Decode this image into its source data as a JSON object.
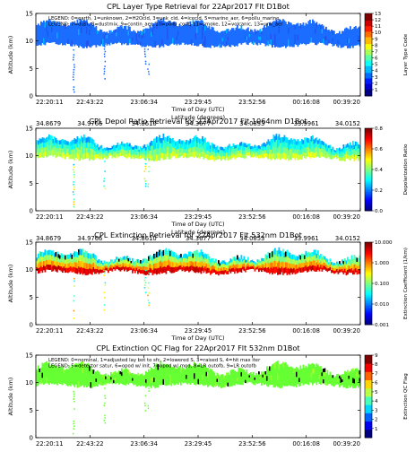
{
  "chart_data": [
    {
      "type": "heatmap",
      "title": "CPL Layer Type Retrieval for 22Apr2017 Flt D1Bot",
      "xlabel": "Time of Day (UTC)",
      "ylabel": "Altitude (km)",
      "xticks": [
        "22:20:11",
        "22:43:22",
        "23:06:34",
        "23:29:45",
        "23:52:56",
        "00:16:08",
        "00:39:20"
      ],
      "ylim": [
        0,
        15
      ],
      "yticks": [
        "0",
        "5",
        "10",
        "15"
      ],
      "colorbar": {
        "label": "Layer Type Code",
        "ticks": [
          "1",
          "2",
          "3",
          "4",
          "5",
          "6",
          "7",
          "8",
          "9",
          "10",
          "11",
          "12",
          "13"
        ],
        "scale": "linear",
        "range": [
          0,
          13
        ]
      },
      "legend": [
        "LEGEND: 0=earth, 1=unknown, 2=H2Ocld, 3=unk_cld, 4=icecld, 5=marine_aer, 6=pollu_marine",
        "LEGEND: 7=dust, 8=dustmix, 9=contin_aer, 10=pollu_cont, 11=smoke, 12=volcanic, 13=unk_aer"
      ],
      "latitude_label": "Latitude (degrees)",
      "latitude_ticks": [
        "34.8679",
        "34.9766",
        "34.8610",
        "34.3677",
        "34.0853",
        "33.9961",
        "34.0152"
      ]
    },
    {
      "type": "heatmap",
      "title": "CPL Depol Ratio Retrieval for 22Apr2017 Flt 1064nm D1Bot",
      "xlabel": "Time of Day (UTC)",
      "ylabel": "Altitude (km)",
      "xticks": [
        "22:20:11",
        "22:43:22",
        "23:06:34",
        "23:29:45",
        "23:52:56",
        "00:16:08",
        "00:39:20"
      ],
      "ylim": [
        0,
        15
      ],
      "yticks": [
        "0",
        "5",
        "10",
        "15"
      ],
      "colorbar": {
        "label": "Depolarization Ratio",
        "ticks": [
          "0.0",
          "0.2",
          "0.4",
          "0.6",
          "0.8"
        ],
        "scale": "linear",
        "range": [
          0,
          0.8
        ]
      },
      "latitude_label": "Latitude (degrees)",
      "latitude_ticks": [
        "34.8679",
        "34.9766",
        "34.8610",
        "34.3677",
        "34.0853",
        "33.9961",
        "34.0152"
      ]
    },
    {
      "type": "heatmap",
      "title": "CPL Extinction Retrieval for 22Apr2017 Flt 532nm D1Bot",
      "xlabel": "Time of Day (UTC)",
      "ylabel": "Altitude (km)",
      "xticks": [
        "22:20:11",
        "22:43:22",
        "23:06:34",
        "23:29:45",
        "23:52:56",
        "00:16:08",
        "00:39:20"
      ],
      "ylim": [
        0,
        15
      ],
      "yticks": [
        "0",
        "5",
        "10",
        "15"
      ],
      "colorbar": {
        "label": "Extinction Coefficient (1/km)",
        "ticks": [
          "0.001",
          "0.010",
          "0.100",
          "1.000",
          "10.000"
        ],
        "scale": "log",
        "range": [
          0.001,
          10
        ]
      }
    },
    {
      "type": "heatmap",
      "title": "CPL Extinction QC Flag for 22Apr2017 Flt 532nm D1Bot",
      "xlabel": "Time of Day (UTC)",
      "ylabel": "Altitude (km)",
      "xticks": [
        "22:20:11",
        "22:43:22",
        "23:06:34",
        "23:29:45",
        "23:52:56",
        "00:16:08",
        "00:39:20"
      ],
      "ylim": [
        0,
        15
      ],
      "yticks": [
        "0",
        "5",
        "10",
        "15"
      ],
      "colorbar": {
        "label": "Extinction QC Flag",
        "ticks": [
          "1",
          "2",
          "3",
          "4",
          "5",
          "6",
          "7",
          "8",
          "9"
        ],
        "scale": "linear",
        "range": [
          0,
          9
        ]
      },
      "legend": [
        "LEGEND: 0=nominal, 1=adjusted lay bot to sfc, 2=lowered S, 3=raised S, 4=hit max iter",
        "LEGEND: 5=detector satur, 6=opod w/ init, 7=opod w/ mod, 8=LR outofb, 9=LR outofb"
      ]
    }
  ]
}
